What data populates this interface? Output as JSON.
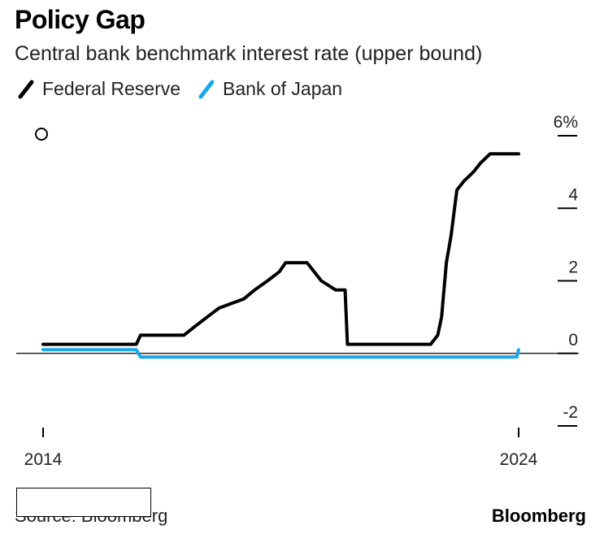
{
  "header": {
    "title": "Policy Gap",
    "subtitle": "Central bank benchmark interest rate (upper bound)"
  },
  "legend": {
    "items": [
      {
        "label": "Federal Reserve",
        "color": "#000000"
      },
      {
        "label": "Bank of Japan",
        "color": "#1aa7e8"
      }
    ]
  },
  "footer": {
    "source": "Source: Bloomberg",
    "brand": "Bloomberg"
  },
  "chart_data": {
    "type": "line",
    "title": "Policy Gap",
    "subtitle": "Central bank benchmark interest rate (upper bound)",
    "xlabel": "",
    "ylabel": "",
    "xlim": [
      2014.0,
      2024.0
    ],
    "ylim": [
      -2,
      6
    ],
    "x_ticks": [
      {
        "value": 2014,
        "label": "2014"
      },
      {
        "value": 2024,
        "label": "2024"
      }
    ],
    "y_ticks": [
      {
        "value": 6,
        "label": "6%"
      },
      {
        "value": 4,
        "label": "4"
      },
      {
        "value": 2,
        "label": "2"
      },
      {
        "value": 0,
        "label": "0"
      },
      {
        "value": -2,
        "label": "-2"
      }
    ],
    "y_axis_position": "right",
    "baseline": 0,
    "series": [
      {
        "name": "Federal Reserve",
        "color": "#000000",
        "points": [
          [
            2014.0,
            0.25
          ],
          [
            2015.96,
            0.25
          ],
          [
            2016.05,
            0.5
          ],
          [
            2016.96,
            0.5
          ],
          [
            2017.2,
            0.75
          ],
          [
            2017.45,
            1.0
          ],
          [
            2017.7,
            1.25
          ],
          [
            2018.22,
            1.5
          ],
          [
            2018.45,
            1.75
          ],
          [
            2018.72,
            2.0
          ],
          [
            2018.97,
            2.25
          ],
          [
            2019.1,
            2.5
          ],
          [
            2019.55,
            2.5
          ],
          [
            2019.85,
            2.0
          ],
          [
            2020.15,
            1.75
          ],
          [
            2020.35,
            1.75
          ],
          [
            2020.4,
            0.25
          ],
          [
            2022.15,
            0.25
          ],
          [
            2022.3,
            0.5
          ],
          [
            2022.38,
            1.0
          ],
          [
            2022.48,
            2.5
          ],
          [
            2022.58,
            3.25
          ],
          [
            2022.7,
            4.5
          ],
          [
            2022.85,
            4.75
          ],
          [
            2023.05,
            5.0
          ],
          [
            2023.2,
            5.25
          ],
          [
            2023.4,
            5.5
          ],
          [
            2024.0,
            5.5
          ]
        ]
      },
      {
        "name": "Bank of Japan",
        "color": "#1aa7e8",
        "points": [
          [
            2014.0,
            0.1
          ],
          [
            2015.96,
            0.1
          ],
          [
            2016.05,
            -0.1
          ],
          [
            2023.96,
            -0.1
          ],
          [
            2024.0,
            0.1
          ]
        ]
      }
    ],
    "annotations": [
      {
        "type": "circle-marker",
        "description": "hollow circle marker at top-left"
      }
    ]
  }
}
